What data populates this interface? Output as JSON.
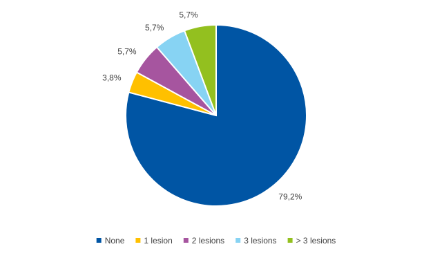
{
  "chart_data": {
    "type": "pie",
    "title": "",
    "categories": [
      "None",
      "1 lesion",
      "2 lesions",
      "3 lesions",
      "> 3 lesions"
    ],
    "values": [
      79.2,
      3.8,
      5.7,
      5.7,
      5.7
    ],
    "value_labels": [
      "79,2%",
      "3,8%",
      "5,7%",
      "5,7%",
      "5,7%"
    ],
    "colors": [
      "#0055A4",
      "#FFC000",
      "#A6559F",
      "#87D3F3",
      "#93C01F"
    ],
    "legend_position": "bottom",
    "start_angle_deg": 0,
    "direction": "clockwise"
  }
}
